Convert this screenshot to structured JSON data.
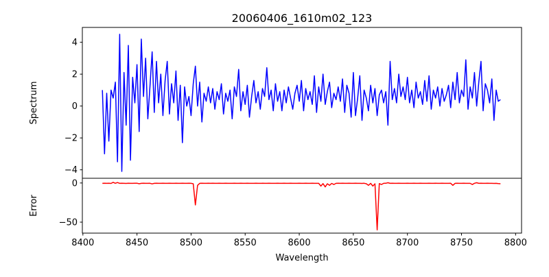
{
  "chart_data": {
    "type": "line",
    "title": "20060406_1610m02_123",
    "xlabel": "Wavelength",
    "xlim": [
      8399.5,
      8805.5
    ],
    "xticks": [
      8400,
      8450,
      8500,
      8550,
      8600,
      8650,
      8700,
      8750,
      8800
    ],
    "x_start": 8418,
    "x_step": 2,
    "panels": [
      {
        "name": "spectrum",
        "ylabel": "Spectrum",
        "ylim": [
          -4.53,
          4.93
        ],
        "yticks": [
          -4,
          -2,
          0,
          2,
          4
        ],
        "color": "#0000ff",
        "values": [
          1.0,
          -3.0,
          0.8,
          -2.2,
          1.0,
          0.5,
          1.5,
          -3.5,
          4.5,
          -4.1,
          2.1,
          -1.2,
          3.8,
          -3.4,
          1.8,
          0.2,
          2.6,
          -1.6,
          4.2,
          0.6,
          3.0,
          -0.8,
          1.2,
          3.4,
          -0.4,
          2.8,
          0.2,
          2.0,
          -0.6,
          1.6,
          2.8,
          -0.5,
          1.4,
          0.2,
          2.2,
          -0.9,
          1.3,
          -2.3,
          1.2,
          0.0,
          0.6,
          -0.6,
          1.4,
          2.5,
          0.0,
          1.5,
          -1.0,
          0.8,
          0.3,
          1.2,
          0.2,
          1.1,
          -0.2,
          0.9,
          0.4,
          1.4,
          -0.5,
          0.8,
          0.3,
          1.0,
          -0.8,
          1.2,
          0.6,
          2.3,
          -0.3,
          0.9,
          0.1,
          1.3,
          -0.7,
          0.6,
          1.6,
          0.2,
          0.9,
          -0.2,
          1.1,
          0.6,
          2.4,
          0.4,
          1.0,
          -0.3,
          1.4,
          0.3,
          0.9,
          -0.3,
          1.0,
          0.2,
          1.2,
          0.5,
          -0.2,
          0.8,
          1.3,
          0.3,
          1.6,
          -0.3,
          1.1,
          0.4,
          0.9,
          0.1,
          1.9,
          -0.4,
          1.2,
          0.3,
          2.0,
          0.1,
          0.9,
          1.5,
          -0.1,
          0.8,
          0.4,
          1.2,
          0.3,
          1.7,
          -0.4,
          1.3,
          0.8,
          -0.7,
          2.1,
          -0.6,
          0.5,
          1.9,
          -0.9,
          1.0,
          0.5,
          -0.3,
          1.3,
          0.2,
          1.1,
          -0.6,
          0.7,
          1.0,
          0.2,
          0.9,
          -1.2,
          2.8,
          0.4,
          1.1,
          0.2,
          2.0,
          0.6,
          1.2,
          0.4,
          1.8,
          0.2,
          1.0,
          -0.1,
          1.5,
          0.5,
          0.9,
          0.1,
          1.6,
          0.3,
          1.9,
          -0.2,
          1.0,
          0.5,
          1.2,
          0.0,
          1.1,
          0.3,
          0.7,
          1.3,
          -0.1,
          1.5,
          0.4,
          2.1,
          0.2,
          1.0,
          0.6,
          2.9,
          -0.2,
          1.2,
          0.5,
          2.1,
          0.0,
          1.5,
          2.8,
          -0.3,
          1.4,
          1.0,
          0.2,
          1.7,
          -0.9,
          1.0,
          0.3,
          0.4
        ]
      },
      {
        "name": "error",
        "ylabel": "Error",
        "ylim": [
          -64,
          6
        ],
        "yticks": [
          -50,
          0
        ],
        "color": "#ff0000",
        "values": [
          -0.5,
          -0.4,
          -0.5,
          -0.3,
          -0.6,
          0.8,
          -0.4,
          0.6,
          -0.5,
          -0.4,
          -0.5,
          -0.6,
          -0.4,
          -0.5,
          -0.5,
          -0.4,
          -0.3,
          -1.0,
          -0.5,
          -0.4,
          -0.5,
          -0.5,
          -0.4,
          -1.2,
          -0.5,
          -0.4,
          -0.5,
          -0.5,
          -0.4,
          -0.5,
          -0.5,
          -0.4,
          -0.5,
          -0.5,
          -0.4,
          -0.5,
          -0.5,
          -0.4,
          -0.5,
          -0.5,
          -0.4,
          -0.5,
          -1.0,
          -28,
          -3.0,
          -0.5,
          -0.4,
          -0.5,
          -0.5,
          -0.4,
          -0.5,
          -0.4,
          -0.5,
          -0.5,
          -0.4,
          -0.5,
          -0.5,
          -0.4,
          -0.5,
          -0.5,
          -0.5,
          -0.4,
          -0.5,
          -0.5,
          -0.4,
          -0.5,
          -0.5,
          -0.4,
          -0.5,
          -0.5,
          -0.5,
          -0.4,
          -0.5,
          -0.5,
          -0.4,
          -0.5,
          -0.5,
          -0.4,
          -0.5,
          -0.5,
          -0.5,
          -0.4,
          -0.5,
          -0.5,
          -0.4,
          -0.5,
          -0.5,
          -0.4,
          -0.5,
          -0.5,
          -0.5,
          -0.4,
          -0.5,
          -0.5,
          -0.4,
          -0.5,
          -0.5,
          -0.4,
          -0.5,
          -0.5,
          -0.5,
          -4,
          -0.8,
          -5,
          -1.0,
          -3,
          -0.6,
          -2,
          -0.5,
          -0.4,
          -0.5,
          -0.4,
          -0.5,
          -0.5,
          -0.4,
          -0.5,
          -0.5,
          -0.4,
          -0.5,
          -0.5,
          -0.6,
          -0.4,
          -1.0,
          -3,
          -0.5,
          -4,
          -1.0,
          -60,
          -0.8,
          -2,
          -0.5,
          -0.4,
          0.3,
          -0.5,
          -0.4,
          -0.5,
          -0.5,
          -0.4,
          -0.5,
          -0.5,
          -0.5,
          -0.4,
          -0.5,
          -0.5,
          -0.4,
          -0.5,
          -0.5,
          -0.4,
          -0.5,
          -0.5,
          -0.5,
          -0.4,
          -0.5,
          -0.5,
          -0.4,
          -0.5,
          -0.5,
          -0.4,
          -0.5,
          -0.5,
          -0.5,
          -0.4,
          -3,
          -0.5,
          -0.4,
          -0.5,
          -0.5,
          -0.4,
          -0.5,
          -0.5,
          -0.5,
          -2,
          -0.4,
          0.3,
          -0.5,
          -0.4,
          -0.5,
          -0.5,
          -0.4,
          -0.5,
          -0.5,
          -0.6,
          -0.5,
          -0.8,
          -1.0
        ]
      }
    ]
  }
}
